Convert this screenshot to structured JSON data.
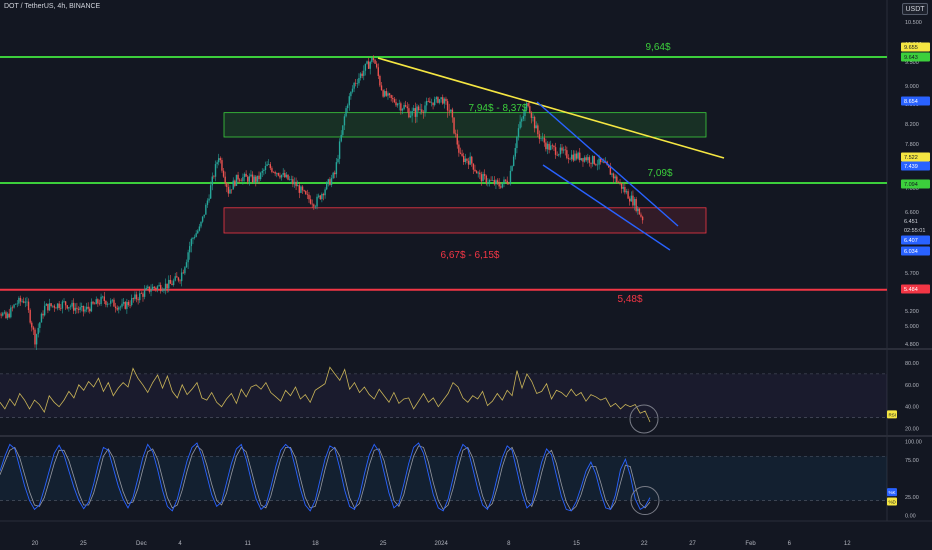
{
  "header": {
    "symbol_line": "DOT / TetherUS, 4h, BINANCE",
    "currency": "USDT"
  },
  "colors": {
    "background": "#131722",
    "up_candle": "#26a69a",
    "down_candle": "#ef5350",
    "support_line": "#3ccf3c",
    "resistance_line": "#f23645",
    "trendline": "#f5e642",
    "channel": "#2962ff",
    "rsi_line": "#c9b458",
    "stoch_k": "#2962ff",
    "stoch_d": "#9598a1",
    "circle": "#787b86"
  },
  "chart_data": [
    {
      "type": "candlestick",
      "title": "DOT / TetherUS, 4h, BINANCE",
      "price_axis": {
        "ticks": [
          "10.500",
          "10.000",
          "9.500",
          "9.000",
          "8.500",
          "8.200",
          "7.800",
          "7.000",
          "6.600",
          "6.000",
          "5.700",
          "5.200",
          "5.000",
          "4.800"
        ],
        "range": [
          4.75,
          10.7
        ]
      },
      "time_axis": {
        "ticks": [
          "20",
          "25",
          "Dec",
          "4",
          "11",
          "18",
          "25",
          "2024",
          "8",
          "15",
          "22",
          "27",
          "Feb",
          "6",
          "12"
        ]
      },
      "price_path": [
        [
          "Nov 16",
          5.7
        ],
        [
          "Nov 17",
          5.25
        ],
        [
          "Nov 18",
          5.1
        ],
        [
          "Nov 19",
          5.3
        ],
        [
          "Nov 20",
          5.35
        ],
        [
          "Nov 21",
          4.85
        ],
        [
          "Nov 22",
          5.25
        ],
        [
          "Nov 24",
          5.3
        ],
        [
          "Nov 26",
          5.2
        ],
        [
          "Nov 28",
          5.35
        ],
        [
          "Nov 30",
          5.25
        ],
        [
          "Dec 2",
          5.5
        ],
        [
          "Dec 4",
          5.55
        ],
        [
          "Dec 5",
          5.65
        ],
        [
          "Dec 7",
          6.25
        ],
        [
          "Dec 8",
          6.9
        ],
        [
          "Dec 9",
          7.6
        ],
        [
          "Dec 10",
          6.95
        ],
        [
          "Dec 11",
          7.2
        ],
        [
          "Dec 13",
          7.15
        ],
        [
          "Dec 14",
          7.4
        ],
        [
          "Dec 15",
          7.3
        ],
        [
          "Dec 17",
          7.05
        ],
        [
          "Dec 18",
          6.85
        ],
        [
          "Dec 19",
          6.75
        ],
        [
          "Dec 20",
          7.0
        ],
        [
          "Dec 21",
          7.25
        ],
        [
          "Dec 22",
          8.3
        ],
        [
          "Dec 23",
          9.05
        ],
        [
          "Dec 25",
          9.6
        ],
        [
          "Dec 26",
          8.8
        ],
        [
          "Dec 27",
          8.6
        ],
        [
          "Dec 29",
          8.35
        ],
        [
          "Jan 1",
          8.65
        ],
        [
          "Jan 2",
          8.35
        ],
        [
          "Jan 3",
          7.55
        ],
        [
          "Jan 4",
          7.5
        ],
        [
          "Jan 5",
          7.2
        ],
        [
          "Jan 7",
          7.05
        ],
        [
          "Jan 8",
          7.15
        ],
        [
          "Jan 9",
          8.1
        ],
        [
          "Jan 10",
          8.55
        ],
        [
          "Jan 11",
          8.0
        ],
        [
          "Jan 12",
          7.75
        ],
        [
          "Jan 14",
          7.6
        ],
        [
          "Jan 16",
          7.55
        ],
        [
          "Jan 18",
          7.4
        ],
        [
          "Jan 20",
          6.95
        ],
        [
          "Jan 21",
          6.75
        ],
        [
          "Jan 22",
          6.4
        ]
      ],
      "levels": [
        {
          "label": "9,64$",
          "value": 9.64,
          "color": "support"
        },
        {
          "label": "7,09$",
          "value": 7.09,
          "color": "support"
        },
        {
          "label": "5,48$",
          "value": 5.48,
          "color": "resistance"
        }
      ],
      "zones": [
        {
          "label": "7,94$ - 8,37$",
          "low": 7.94,
          "high": 8.37,
          "color": "support"
        },
        {
          "label": "6,67$ - 6,15$",
          "low": 6.15,
          "high": 6.67,
          "color": "resistance"
        }
      ],
      "price_tags": [
        {
          "text": "9.655",
          "bg": "#f5e642",
          "fg": "#131722"
        },
        {
          "text": "9.643",
          "bg": "#3ccf3c",
          "fg": "#131722"
        },
        {
          "text": "8.654",
          "bg": "#2962ff",
          "fg": "#ffffff"
        },
        {
          "text": "7.522",
          "bg": "#f5e642",
          "fg": "#131722"
        },
        {
          "text": "7.439",
          "bg": "#2962ff",
          "fg": "#ffffff"
        },
        {
          "text": "7.094",
          "bg": "#3ccf3c",
          "fg": "#131722"
        },
        {
          "text": "6.451",
          "bg": "#131722",
          "fg": "#d1d4dc"
        },
        {
          "text": "02:55:01",
          "bg": "#131722",
          "fg": "#d1d4dc"
        },
        {
          "text": "6.407",
          "bg": "#2962ff",
          "fg": "#ffffff"
        },
        {
          "text": "6.034",
          "bg": "#2962ff",
          "fg": "#ffffff"
        },
        {
          "text": "5.484",
          "bg": "#f23645",
          "fg": "#ffffff"
        }
      ]
    },
    {
      "type": "line",
      "indicator": "RSI",
      "legend_tag": "RSI",
      "ylim": [
        15,
        90
      ],
      "y_ticks": [
        "80.00",
        "60.00",
        "40.00",
        "20.00"
      ],
      "values": [
        44,
        38,
        47,
        41,
        52,
        46,
        38,
        46,
        42,
        35,
        50,
        44,
        40,
        46,
        54,
        48,
        60,
        55,
        63,
        58,
        66,
        54,
        62,
        50,
        57,
        62,
        58,
        75,
        66,
        60,
        53,
        62,
        69,
        57,
        68,
        54,
        48,
        60,
        51,
        56,
        62,
        48,
        46,
        53,
        44,
        40,
        47,
        52,
        43,
        56,
        49,
        58,
        60,
        56,
        62,
        53,
        49,
        45,
        55,
        50,
        58,
        47,
        51,
        44,
        55,
        58,
        61,
        76,
        70,
        64,
        74,
        56,
        62,
        53,
        58,
        51,
        47,
        56,
        50,
        44,
        53,
        43,
        47,
        48,
        38,
        45,
        52,
        44,
        48,
        40,
        46,
        52,
        62,
        58,
        48,
        44,
        50,
        47,
        54,
        41,
        45,
        52,
        46,
        55,
        50,
        73,
        57,
        70,
        63,
        52,
        54,
        61,
        47,
        55,
        53,
        49,
        56,
        50,
        53,
        45,
        51,
        49,
        46,
        48,
        40,
        43,
        38,
        42,
        40,
        42,
        34,
        36,
        26
      ]
    },
    {
      "type": "line",
      "indicator": "Stochastic RSI",
      "legend_tags": [
        "%K",
        "%D"
      ],
      "ylim": [
        -5,
        102
      ],
      "y_ticks": [
        "100.00",
        "75.00",
        "25.00",
        "0.00"
      ],
      "series": [
        {
          "name": "%K",
          "values": [
            60,
            80,
            96,
            90,
            65,
            40,
            20,
            8,
            14,
            36,
            60,
            84,
            95,
            82,
            60,
            38,
            20,
            9,
            18,
            42,
            70,
            92,
            88,
            64,
            40,
            22,
            10,
            24,
            50,
            78,
            96,
            86,
            62,
            34,
            12,
            6,
            22,
            48,
            74,
            92,
            98,
            80,
            54,
            28,
            12,
            18,
            44,
            70,
            90,
            96,
            76,
            48,
            22,
            8,
            14,
            38,
            66,
            88,
            96,
            90,
            64,
            36,
            14,
            6,
            20,
            48,
            76,
            94,
            90,
            64,
            34,
            12,
            8,
            26,
            56,
            82,
            96,
            86,
            58,
            30,
            10,
            16,
            42,
            70,
            92,
            98,
            84,
            56,
            28,
            10,
            6,
            22,
            50,
            80,
            96,
            90,
            64,
            36,
            14,
            8,
            24,
            52,
            78,
            94,
            88,
            60,
            30,
            10,
            16,
            44,
            72,
            90,
            82,
            54,
            26,
            8,
            6,
            18,
            38,
            60,
            72,
            56,
            30,
            10,
            8,
            28,
            62,
            76,
            54,
            22,
            8,
            12,
            24
          ]
        },
        {
          "name": "%D",
          "values": [
            55,
            72,
            88,
            92,
            78,
            55,
            32,
            14,
            12,
            24,
            46,
            70,
            88,
            88,
            74,
            52,
            30,
            14,
            14,
            30,
            54,
            80,
            90,
            78,
            54,
            32,
            16,
            18,
            36,
            62,
            86,
            90,
            76,
            50,
            24,
            10,
            14,
            34,
            60,
            82,
            94,
            88,
            68,
            42,
            20,
            14,
            30,
            56,
            80,
            92,
            86,
            62,
            36,
            14,
            10,
            26,
            52,
            76,
            92,
            92,
            78,
            50,
            24,
            10,
            12,
            34,
            62,
            86,
            92,
            80,
            52,
            24,
            10,
            16,
            40,
            68,
            88,
            90,
            74,
            46,
            20,
            12,
            28,
            56,
            80,
            94,
            92,
            72,
            44,
            20,
            8,
            14,
            36,
            64,
            88,
            92,
            78,
            52,
            26,
            10,
            16,
            38,
            66,
            86,
            92,
            76,
            46,
            20,
            12,
            30,
            58,
            82,
            88,
            70,
            42,
            18,
            6,
            12,
            28,
            50,
            66,
            66,
            44,
            20,
            8,
            18,
            44,
            68,
            66,
            40,
            16,
            10,
            18
          ]
        }
      ]
    }
  ]
}
